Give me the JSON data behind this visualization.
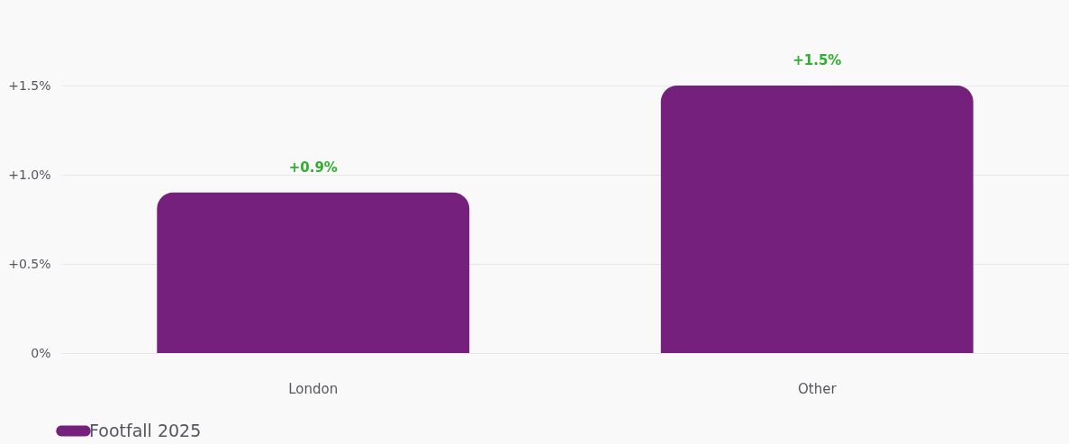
{
  "chart_data": {
    "type": "bar",
    "categories": [
      "London",
      "Other"
    ],
    "series": [
      {
        "name": "Footfall 2025",
        "color": "#76207e",
        "values": [
          0.9,
          1.5
        ]
      }
    ],
    "value_labels": [
      "+0.9%",
      "+1.5%"
    ],
    "ylim": [
      0,
      1.5
    ],
    "yticks": [
      {
        "value": 0,
        "label": "0%"
      },
      {
        "value": 0.5,
        "label": "+0.5%"
      },
      {
        "value": 1,
        "label": "+1.0%"
      },
      {
        "value": 1.5,
        "label": "+1.5%"
      }
    ],
    "grid": "y",
    "legend": "bottom"
  }
}
